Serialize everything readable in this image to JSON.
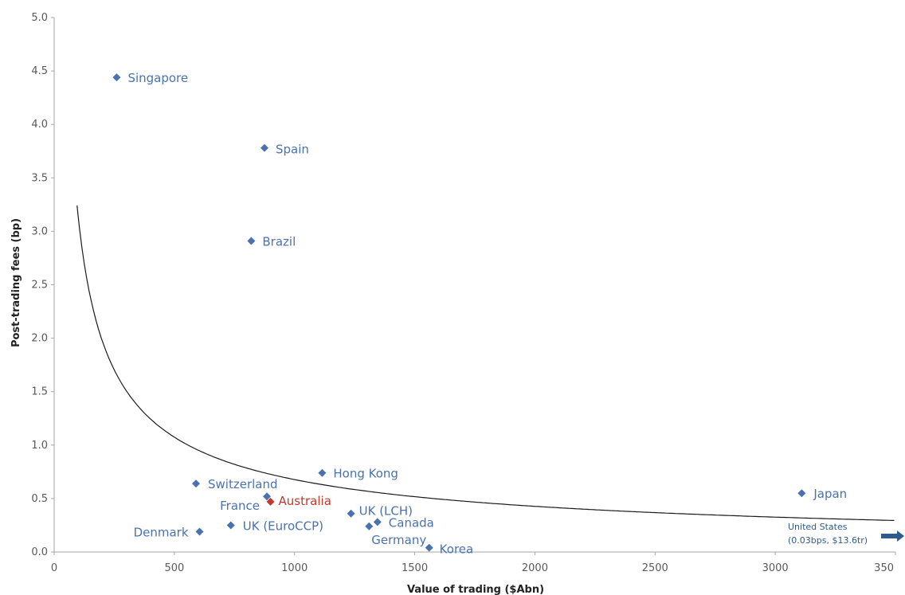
{
  "chart_data": {
    "type": "scatter",
    "title": "",
    "xlabel": "Value of trading ($Abn)",
    "ylabel": "Post-trading fees (bp)",
    "xlim": [
      0,
      3500
    ],
    "ylim": [
      0,
      5.0
    ],
    "x_ticks": [
      "0",
      "500",
      "1000",
      "1500",
      "2000",
      "2500",
      "3000",
      "350"
    ],
    "y_ticks": [
      "0.0",
      "0.5",
      "1.0",
      "1.5",
      "2.0",
      "2.5",
      "3.0",
      "3.5",
      "4.0",
      "4.5",
      "5.0"
    ],
    "grid": false,
    "legend": "none",
    "colors": {
      "points": "#4a72b0",
      "highlight": "#c0392b",
      "curve": "#1a1a1a",
      "arrow": "#2e5c8a"
    },
    "points": [
      {
        "label": "Singapore",
        "x": 260,
        "y": 4.44
      },
      {
        "label": "Spain",
        "x": 875,
        "y": 3.78
      },
      {
        "label": "Brazil",
        "x": 820,
        "y": 2.91
      },
      {
        "label": "Hong Kong",
        "x": 1115,
        "y": 0.74
      },
      {
        "label": "Switzerland",
        "x": 590,
        "y": 0.64
      },
      {
        "label": "France",
        "x": 885,
        "y": 0.52
      },
      {
        "label": "Australia",
        "x": 900,
        "y": 0.47,
        "highlight": true
      },
      {
        "label": "UK (LCH)",
        "x": 1235,
        "y": 0.36
      },
      {
        "label": "Canada",
        "x": 1345,
        "y": 0.28
      },
      {
        "label": "Germany",
        "x": 1310,
        "y": 0.24
      },
      {
        "label": "UK (EuroCCP)",
        "x": 735,
        "y": 0.25
      },
      {
        "label": "Denmark",
        "x": 605,
        "y": 0.19
      },
      {
        "label": "Korea",
        "x": 1560,
        "y": 0.04
      },
      {
        "label": "Japan",
        "x": 3110,
        "y": 0.55
      }
    ],
    "trendline": {
      "type": "power",
      "x_range": [
        95,
        3500
      ]
    },
    "annotation": {
      "line1": "United States",
      "line2": "(0.03bps, $13.6tr)"
    }
  }
}
